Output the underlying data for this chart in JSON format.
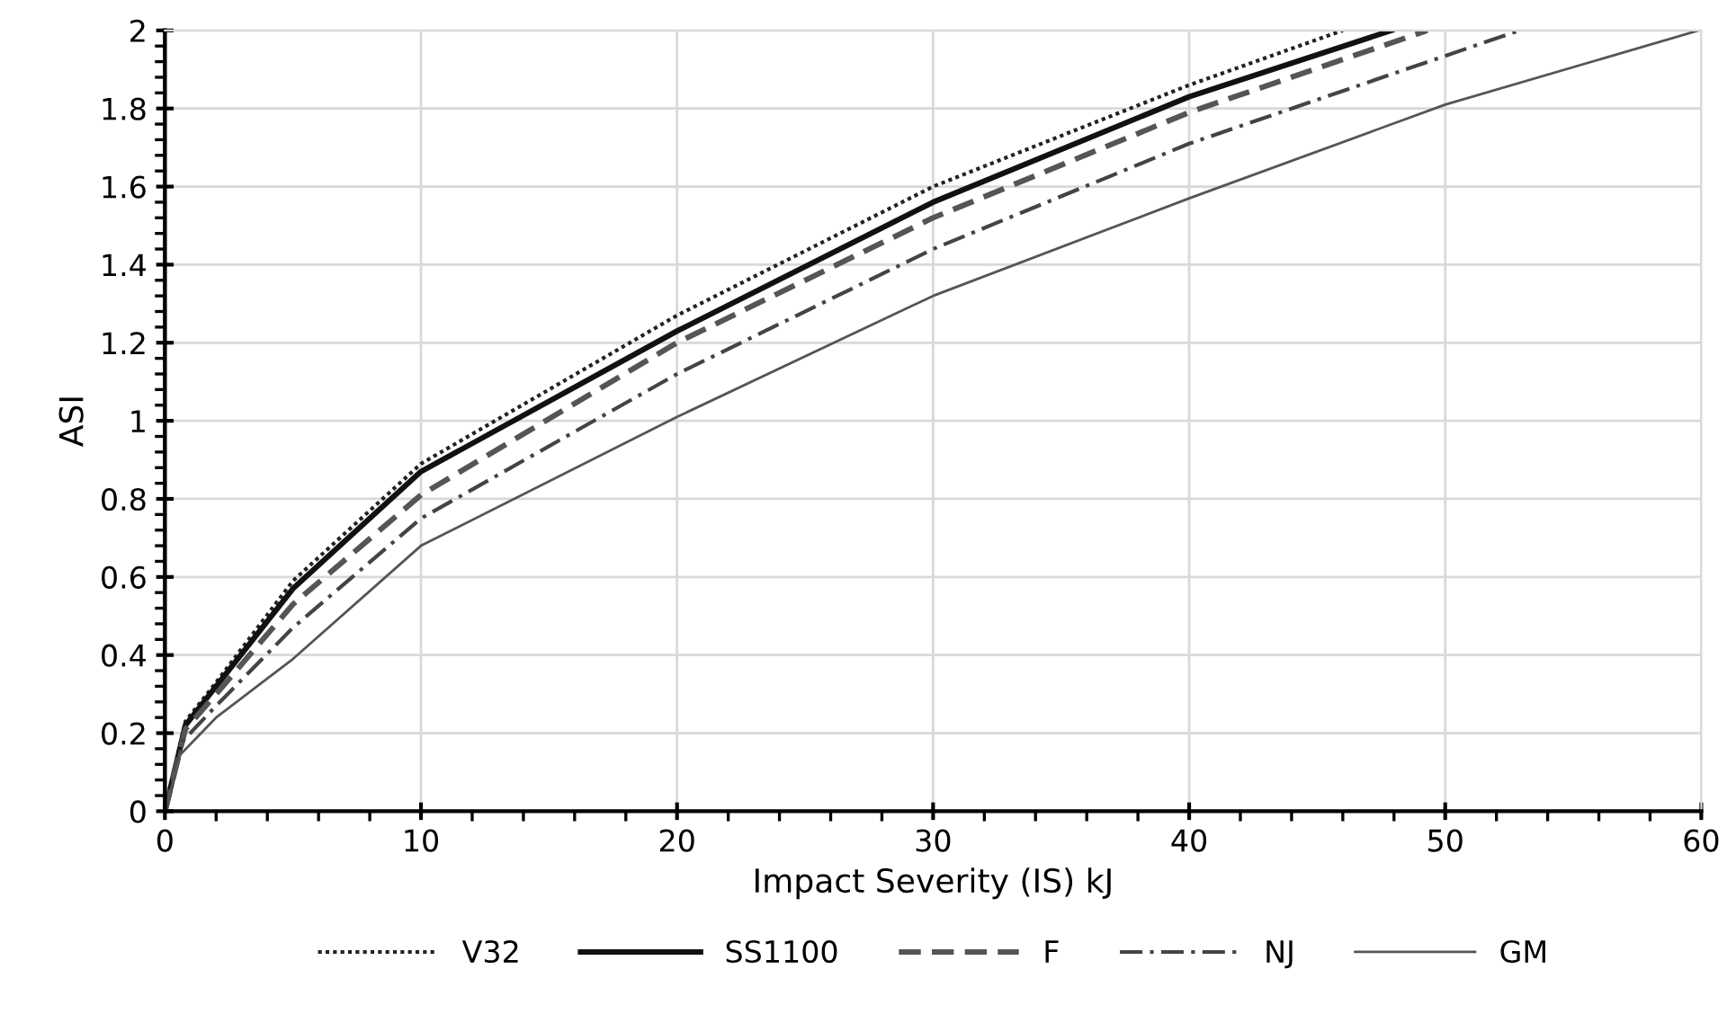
{
  "chart_data": {
    "type": "line",
    "xlabel": "Impact Severity (IS) kJ",
    "ylabel": "ASI",
    "xlim": [
      0,
      60
    ],
    "ylim": [
      0,
      2
    ],
    "xticks": [
      0,
      10,
      20,
      30,
      40,
      50,
      60
    ],
    "yticks": [
      0,
      {
        "value": 0.2,
        "label": "0.2"
      },
      {
        "value": 0.4,
        "label": "0.4"
      },
      {
        "value": 0.6,
        "label": "0.6"
      },
      {
        "value": 0.8,
        "label": "0.8"
      },
      1,
      {
        "value": 1.2,
        "label": "1.2"
      },
      {
        "value": 1.4,
        "label": "1.4"
      },
      {
        "value": 1.6,
        "label": "1.6"
      },
      {
        "value": 1.8,
        "label": "1.8"
      },
      2
    ],
    "grid": true,
    "legend": "bottom",
    "marker": "none",
    "series": [
      {
        "name": "V32",
        "color": "#222222",
        "line_style": "dotted",
        "x": [
          0,
          0.8,
          2,
          5,
          10,
          20,
          30,
          40,
          46
        ],
        "values": [
          0,
          0.23,
          0.33,
          0.59,
          0.89,
          1.27,
          1.6,
          1.86,
          2
        ]
      },
      {
        "name": "SS1100",
        "color": "#111111",
        "line_style": "solid",
        "x": [
          0,
          0.8,
          2,
          5,
          10,
          20,
          30,
          40,
          47.9
        ],
        "values": [
          0,
          0.22,
          0.32,
          0.57,
          0.87,
          1.23,
          1.56,
          1.83,
          2
        ]
      },
      {
        "name": "F",
        "color": "#555555",
        "line_style": "dashed",
        "x": [
          0,
          0.8,
          2,
          5,
          10,
          20,
          30,
          40,
          49.3
        ],
        "values": [
          0,
          0.21,
          0.3,
          0.53,
          0.81,
          1.2,
          1.52,
          1.79,
          2
        ]
      },
      {
        "name": "NJ",
        "color": "#444444",
        "line_style": "dashdot",
        "x": [
          0,
          0.7,
          2,
          5,
          10,
          20,
          30,
          40,
          52.9
        ],
        "values": [
          0,
          0.18,
          0.27,
          0.47,
          0.75,
          1.12,
          1.44,
          1.71,
          2
        ]
      },
      {
        "name": "GM",
        "color": "#555555",
        "line_style": "solid",
        "x": [
          0,
          0.6,
          2,
          5,
          10,
          20,
          30,
          40,
          50,
          59.9
        ],
        "values": [
          0,
          0.145,
          0.24,
          0.39,
          0.68,
          1.01,
          1.32,
          1.57,
          1.81,
          2
        ]
      }
    ]
  }
}
